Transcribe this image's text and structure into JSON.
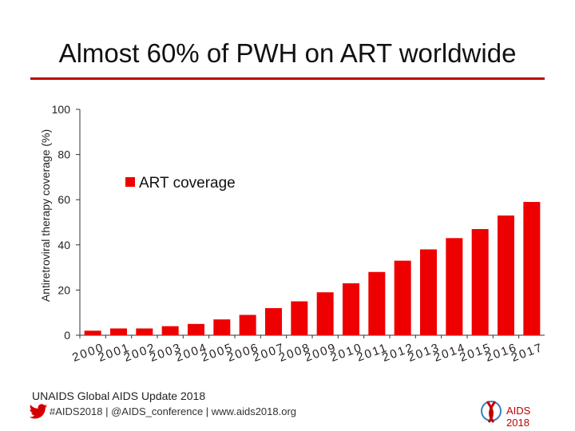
{
  "slide": {
    "title": "Almost 60% of PWH on ART worldwide"
  },
  "footer": {
    "source": "UNAIDS Global AIDS Update 2018",
    "links": "#AIDS2018 | @AIDS_conference | www.aids2018.org",
    "logo_text": "AIDS 2018"
  },
  "colors": {
    "bar": "#ee0000",
    "accent": "#c00000",
    "twitter": "#d40000"
  },
  "chart_data": {
    "type": "bar",
    "title": "",
    "xlabel": "",
    "ylabel": "Antiretroviral therapy coverage (%)",
    "ylim": [
      0,
      100
    ],
    "yticks": [
      0,
      20,
      40,
      60,
      80,
      100
    ],
    "grid": false,
    "legend_position": "upper-left",
    "categories": [
      "2000",
      "2001",
      "2002",
      "2003",
      "2004",
      "2005",
      "2006",
      "2007",
      "2008",
      "2009",
      "2010",
      "2011",
      "2012",
      "2013",
      "2014",
      "2015",
      "2016",
      "2017"
    ],
    "series": [
      {
        "name": "ART coverage",
        "values": [
          2,
          3,
          3,
          4,
          5,
          7,
          9,
          12,
          15,
          19,
          23,
          28,
          33,
          38,
          43,
          47,
          53,
          59
        ]
      }
    ]
  }
}
